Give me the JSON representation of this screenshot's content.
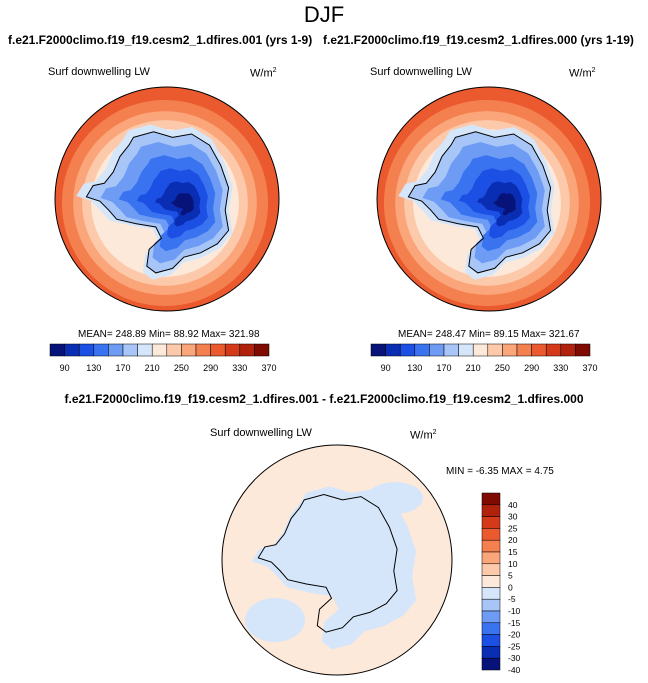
{
  "figure": {
    "title": "DJF",
    "panel_left": {
      "run": "f.e21.F2000climo.f19_f19.cesm2_1.dfires.001 (yrs 1-9)",
      "variable": "Surf downwelling LW",
      "unit": "W/m",
      "unit_exp": "2",
      "stats": "MEAN= 248.89  Min=  88.92  Max= 321.98"
    },
    "panel_right": {
      "run": "f.e21.F2000climo.f19_f19.cesm2_1.dfires.000 (yrs 1-19)",
      "variable": "Surf downwelling LW",
      "unit": "W/m",
      "unit_exp": "2",
      "stats": "MEAN= 248.47  Min=  89.15  Max= 321.67"
    },
    "panel_diff": {
      "title": "f.e21.F2000climo.f19_f19.cesm2_1.dfires.001 - f.e21.F2000climo.f19_f19.cesm2_1.dfires.000",
      "variable": "Surf downwelling LW",
      "unit": "W/m",
      "unit_exp": "2",
      "stats": "MIN = -6.35 MAX =  4.75"
    }
  },
  "colorbar_main": {
    "labels": [
      "90",
      "130",
      "170",
      "210",
      "250",
      "290",
      "330",
      "370"
    ],
    "colors": [
      "#08137a",
      "#0a2eb3",
      "#1c4fe3",
      "#3a73f0",
      "#6e9cf5",
      "#a7c6f7",
      "#d6e6fa",
      "#fde9da",
      "#fcc9aa",
      "#fba57a",
      "#f5804f",
      "#ea5a2e",
      "#d43a1a",
      "#b0220c",
      "#7e0a02"
    ]
  },
  "colorbar_diff": {
    "labels": [
      "40",
      "30",
      "25",
      "20",
      "15",
      "10",
      "5",
      "0",
      "-5",
      "-10",
      "-15",
      "-20",
      "-25",
      "-30",
      "-40"
    ],
    "colors": [
      "#7e0a02",
      "#b0220c",
      "#d43a1a",
      "#ea5a2e",
      "#f5804f",
      "#fba57a",
      "#fcc9aa",
      "#fde9da",
      "#d6e6fa",
      "#a7c6f7",
      "#6e9cf5",
      "#3a73f0",
      "#1c4fe3",
      "#0a2eb3",
      "#08137a"
    ]
  },
  "colors": {
    "ocean_far": "#ea5a2e",
    "coast_line": "#000000",
    "diff_positive": "#fde9da",
    "diff_negative": "#d6e6fa"
  }
}
